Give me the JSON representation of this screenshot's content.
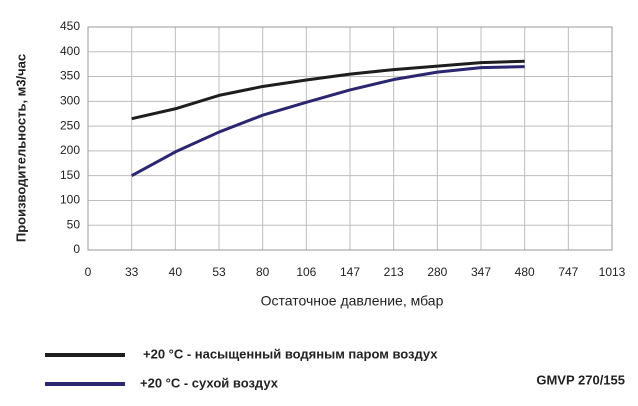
{
  "chart_data": {
    "type": "line",
    "ylabel": "Производительность, м3/час",
    "xlabel": "Остаточное давление, мбар",
    "categories": [
      "0",
      "33",
      "40",
      "53",
      "80",
      "106",
      "147",
      "213",
      "280",
      "347",
      "480",
      "747",
      "1013"
    ],
    "series": [
      {
        "name": "+20 °C - насыщенный водяным паром воздух",
        "color": "#1e1e1e",
        "values": [
          null,
          265,
          285,
          312,
          330,
          343,
          355,
          364,
          371,
          378,
          381,
          null,
          null
        ]
      },
      {
        "name": "+20 °C - сухой воздух",
        "color": "#2b2670",
        "values": [
          null,
          150,
          198,
          238,
          272,
          298,
          323,
          344,
          359,
          368,
          370,
          null,
          null
        ]
      }
    ],
    "ylim": [
      0,
      450
    ],
    "yticks": [
      0,
      50,
      100,
      150,
      200,
      250,
      300,
      350,
      400,
      450
    ],
    "grid": true,
    "annotation": "GMVP 270/155"
  }
}
